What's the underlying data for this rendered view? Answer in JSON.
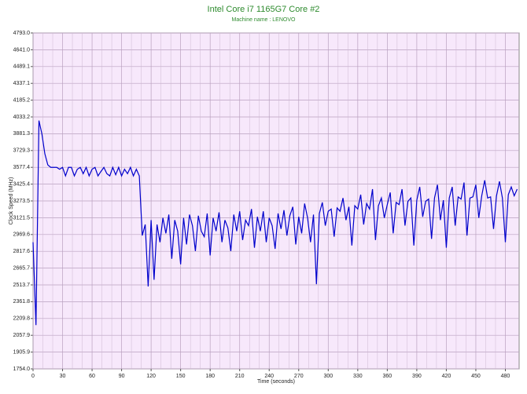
{
  "chart_data": {
    "type": "line",
    "title": "Intel Core i7 1165G7 Core #2",
    "subtitle": "Machine name : LENOVO",
    "xlabel": "Time (seconds)",
    "ylabel": "Clock Speed (MHz)",
    "xlim": [
      0,
      494
    ],
    "xticks": [
      0,
      30,
      60,
      90,
      120,
      150,
      180,
      210,
      240,
      270,
      300,
      330,
      360,
      390,
      420,
      450,
      480
    ],
    "ylim": [
      1754,
      4793
    ],
    "yticks": [
      {
        "value": 1754,
        "label": "1754.0"
      },
      1905.9,
      2057.9,
      2209.8,
      2361.8,
      2513.7,
      2665.7,
      2817.6,
      2969.6,
      3121.5,
      3273.5,
      3425.4,
      3577.4,
      3729.3,
      3881.3,
      4033.2,
      4185.2,
      4337.1,
      4489.1,
      {
        "value": 4641,
        "label": "4641.0"
      },
      {
        "value": 4793,
        "label": "4793.0"
      }
    ],
    "grid": true,
    "series": [
      {
        "name": "Core #2",
        "color": "#0000cc",
        "x": [
          0,
          3,
          6,
          9,
          12,
          15,
          18,
          21,
          24,
          27,
          30,
          33,
          36,
          39,
          42,
          45,
          48,
          51,
          54,
          57,
          60,
          63,
          66,
          69,
          72,
          75,
          78,
          81,
          84,
          87,
          90,
          93,
          96,
          99,
          102,
          105,
          108,
          111,
          114,
          117,
          120,
          123,
          126,
          129,
          132,
          135,
          138,
          141,
          144,
          147,
          150,
          153,
          156,
          159,
          162,
          165,
          168,
          171,
          174,
          177,
          180,
          183,
          186,
          189,
          192,
          195,
          198,
          201,
          204,
          207,
          210,
          213,
          216,
          219,
          222,
          225,
          228,
          231,
          234,
          237,
          240,
          243,
          246,
          249,
          252,
          255,
          258,
          261,
          264,
          267,
          270,
          273,
          276,
          279,
          282,
          285,
          288,
          291,
          294,
          297,
          300,
          303,
          306,
          309,
          312,
          315,
          318,
          321,
          324,
          327,
          330,
          333,
          336,
          339,
          342,
          345,
          348,
          351,
          354,
          357,
          360,
          363,
          366,
          369,
          372,
          375,
          378,
          381,
          384,
          387,
          390,
          393,
          396,
          399,
          402,
          405,
          408,
          411,
          414,
          417,
          420,
          423,
          426,
          429,
          432,
          435,
          438,
          441,
          444,
          447,
          450,
          453,
          456,
          459,
          462,
          465,
          468,
          471,
          474,
          477,
          480,
          483,
          486,
          489,
          492
        ],
        "values": [
          2900,
          2150,
          4000,
          3880,
          3700,
          3600,
          3577,
          3577,
          3577,
          3560,
          3577,
          3500,
          3577,
          3577,
          3500,
          3560,
          3577,
          3520,
          3577,
          3500,
          3560,
          3577,
          3500,
          3540,
          3577,
          3520,
          3500,
          3577,
          3510,
          3577,
          3500,
          3560,
          3520,
          3577,
          3500,
          3560,
          3500,
          2960,
          3060,
          2500,
          3100,
          2560,
          3060,
          2900,
          3120,
          2980,
          3150,
          2750,
          3100,
          3000,
          2700,
          3120,
          2880,
          3150,
          3050,
          2820,
          3140,
          3000,
          2950,
          3160,
          2780,
          3120,
          3000,
          3170,
          2900,
          3100,
          3030,
          2820,
          3150,
          3000,
          3180,
          2920,
          3100,
          3050,
          3200,
          2850,
          3130,
          3000,
          3180,
          2900,
          3120,
          3050,
          2840,
          3160,
          3020,
          3190,
          2960,
          3140,
          3220,
          2880,
          3130,
          2980,
          3250,
          3120,
          2900,
          3150,
          2520,
          3160,
          3260,
          3050,
          3180,
          3200,
          2950,
          3210,
          3180,
          3300,
          3100,
          3220,
          2870,
          3230,
          3200,
          3330,
          3060,
          3250,
          3200,
          3380,
          2920,
          3230,
          3300,
          3120,
          3240,
          3350,
          2980,
          3260,
          3240,
          3380,
          3050,
          3270,
          3300,
          2870,
          3280,
          3400,
          3130,
          3270,
          3290,
          2930,
          3300,
          3420,
          3100,
          3280,
          2850,
          3300,
          3400,
          3050,
          3310,
          3290,
          3440,
          2960,
          3300,
          3310,
          3420,
          3120,
          3320,
          3460,
          3300,
          3310,
          3020,
          3320,
          3450,
          3300,
          2900,
          3330,
          3400,
          3320,
          3380
        ]
      }
    ]
  }
}
